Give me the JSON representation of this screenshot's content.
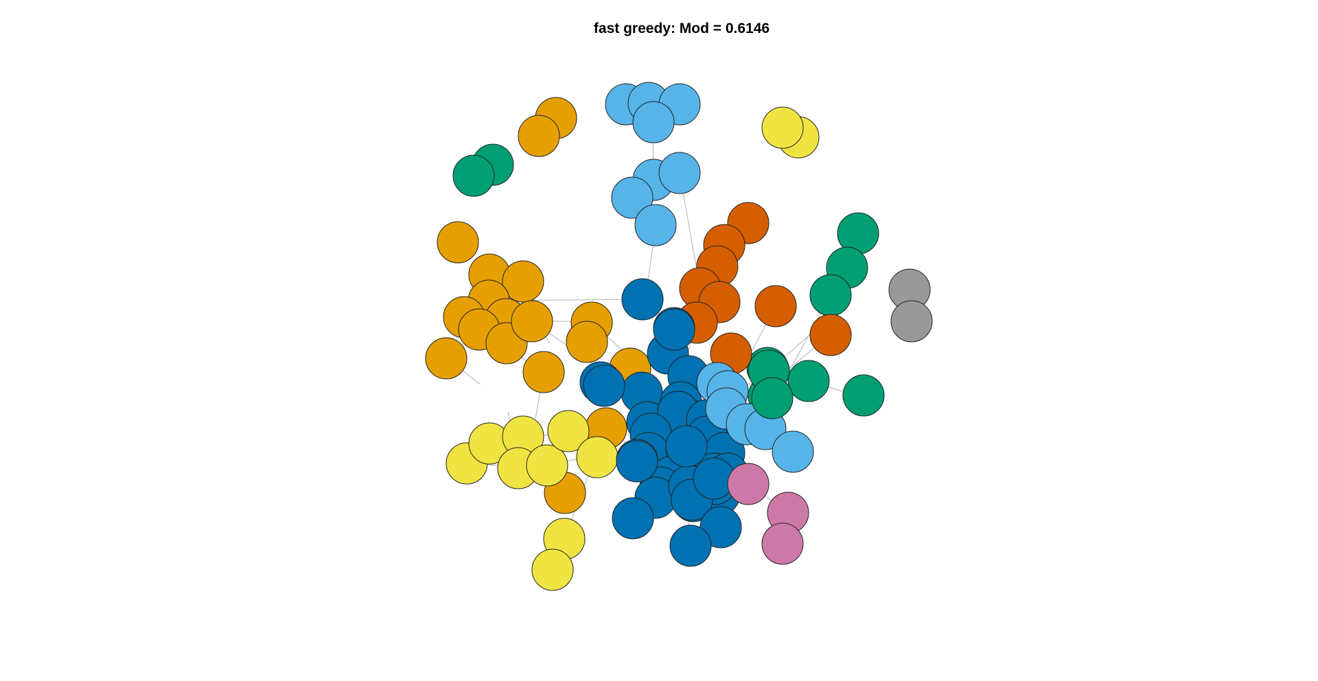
{
  "title": "fast greedy: Mod = 0.6146",
  "community_colors": {
    "dark_blue": "#0072B2",
    "sky_blue": "#56B4E9",
    "orange": "#E69F00",
    "vermillion": "#D55E00",
    "green": "#009E73",
    "yellow": "#F0E442",
    "pink": "#CC79A7",
    "grey": "#999999"
  },
  "edge_color": "#bdbdbd",
  "node_border_color": "#222222"
}
